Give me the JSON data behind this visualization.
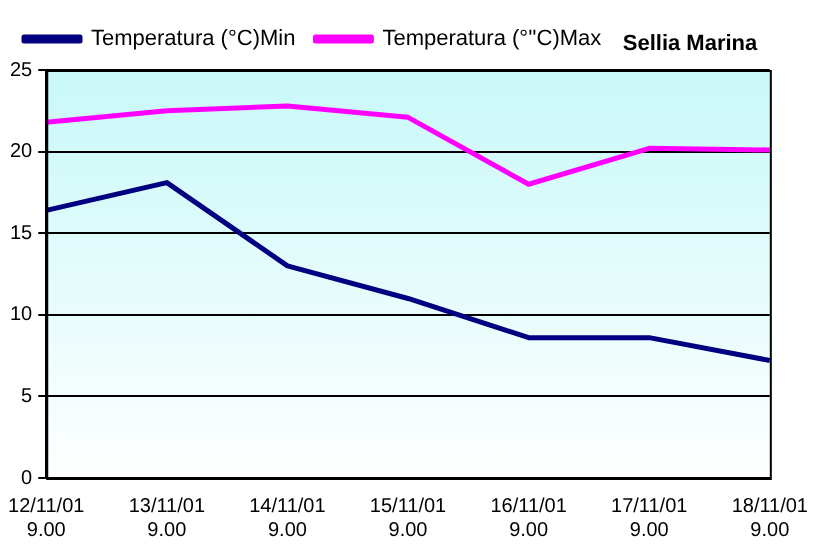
{
  "chart_data": {
    "type": "line",
    "title": "Sellia Marina",
    "categories": [
      "12/11/01\n9.00",
      "13/11/01\n9.00",
      "14/11/01\n9.00",
      "15/11/01\n9.00",
      "16/11/01\n9.00",
      "17/11/01\n9.00",
      "18/11/01\n9.00"
    ],
    "series": [
      {
        "name": "Temperatura (°C)Min",
        "color": "#000080",
        "values": [
          16.4,
          18.1,
          13.0,
          11.0,
          8.6,
          8.6,
          7.2
        ]
      },
      {
        "name": "Temperatura (°''C)Max",
        "color": "#ff00ff",
        "values": [
          21.8,
          22.5,
          22.8,
          22.1,
          18.0,
          20.2,
          20.1
        ]
      }
    ],
    "ylim": [
      0,
      25
    ],
    "yticks": [
      0,
      5,
      10,
      15,
      20,
      25
    ],
    "grid": "y",
    "legend": "top",
    "marker": "none",
    "line_style": "solid"
  }
}
